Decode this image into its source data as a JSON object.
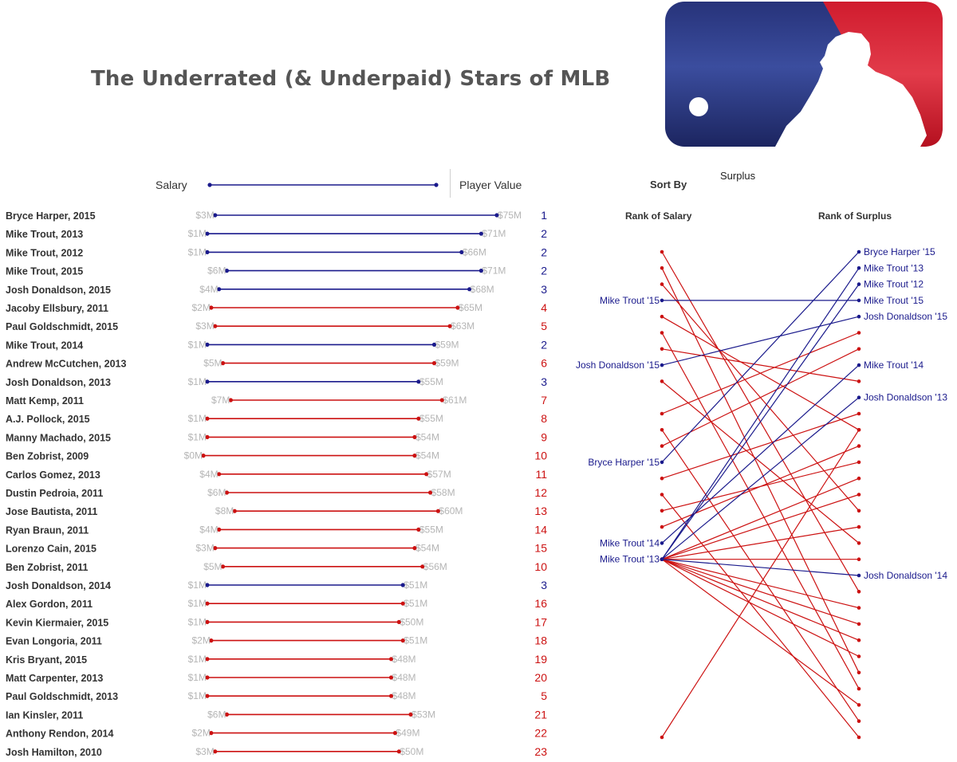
{
  "title": "The Underrated (& Underpaid) Stars of MLB",
  "header": {
    "legend_salary": "Salary",
    "legend_value": "Player Value",
    "surplus": "Surplus",
    "sort_by": "Sort By",
    "rank_salary": "Rank of Salary",
    "rank_surplus": "Rank of Surplus"
  },
  "colors": {
    "blue": "#1a1a8c",
    "red": "#cc1111",
    "label_gray": "#b5b5b5",
    "name_text": "#333333"
  },
  "icons": {
    "logo": "mlb-logo"
  },
  "chart_data": [
    {
      "type": "dumbbell",
      "xlim": [
        0,
        75
      ],
      "unit": "$M",
      "players": [
        {
          "name": "Bryce Harper, 2015",
          "salary": 3,
          "value": 75,
          "salary_label": "$3M",
          "value_label": "$75M",
          "rank": 1,
          "highlight": true
        },
        {
          "name": "Mike Trout, 2013",
          "salary": 1,
          "value": 71,
          "salary_label": "$1M",
          "value_label": "$71M",
          "rank": 2,
          "highlight": true
        },
        {
          "name": "Mike Trout, 2012",
          "salary": 1,
          "value": 66,
          "salary_label": "$1M",
          "value_label": "$66M",
          "rank": 2,
          "highlight": true
        },
        {
          "name": "Mike Trout, 2015",
          "salary": 6,
          "value": 71,
          "salary_label": "$6M",
          "value_label": "$71M",
          "rank": 2,
          "highlight": true
        },
        {
          "name": "Josh Donaldson, 2015",
          "salary": 4,
          "value": 68,
          "salary_label": "$4M",
          "value_label": "$68M",
          "rank": 3,
          "highlight": true
        },
        {
          "name": "Jacoby Ellsbury, 2011",
          "salary": 2,
          "value": 65,
          "salary_label": "$2M",
          "value_label": "$65M",
          "rank": 4,
          "highlight": false
        },
        {
          "name": "Paul Goldschmidt, 2015",
          "salary": 3,
          "value": 63,
          "salary_label": "$3M",
          "value_label": "$63M",
          "rank": 5,
          "highlight": false
        },
        {
          "name": "Mike Trout, 2014",
          "salary": 1,
          "value": 59,
          "salary_label": "$1M",
          "value_label": "$59M",
          "rank": 2,
          "highlight": true
        },
        {
          "name": "Andrew McCutchen, 2013",
          "salary": 5,
          "value": 59,
          "salary_label": "$5M",
          "value_label": "$59M",
          "rank": 6,
          "highlight": false
        },
        {
          "name": "Josh Donaldson, 2013",
          "salary": 1,
          "value": 55,
          "salary_label": "$1M",
          "value_label": "$55M",
          "rank": 3,
          "highlight": true
        },
        {
          "name": "Matt Kemp, 2011",
          "salary": 7,
          "value": 61,
          "salary_label": "$7M",
          "value_label": "$61M",
          "rank": 7,
          "highlight": false
        },
        {
          "name": "A.J. Pollock, 2015",
          "salary": 1,
          "value": 55,
          "salary_label": "$1M",
          "value_label": "$55M",
          "rank": 8,
          "highlight": false
        },
        {
          "name": "Manny Machado, 2015",
          "salary": 1,
          "value": 54,
          "salary_label": "$1M",
          "value_label": "$54M",
          "rank": 9,
          "highlight": false
        },
        {
          "name": "Ben Zobrist, 2009",
          "salary": 0,
          "value": 54,
          "salary_label": "$0M",
          "value_label": "$54M",
          "rank": 10,
          "highlight": false
        },
        {
          "name": "Carlos Gomez, 2013",
          "salary": 4,
          "value": 57,
          "salary_label": "$4M",
          "value_label": "$57M",
          "rank": 11,
          "highlight": false
        },
        {
          "name": "Dustin Pedroia, 2011",
          "salary": 6,
          "value": 58,
          "salary_label": "$6M",
          "value_label": "$58M",
          "rank": 12,
          "highlight": false
        },
        {
          "name": "Jose Bautista, 2011",
          "salary": 8,
          "value": 60,
          "salary_label": "$8M",
          "value_label": "$60M",
          "rank": 13,
          "highlight": false
        },
        {
          "name": "Ryan Braun, 2011",
          "salary": 4,
          "value": 55,
          "salary_label": "$4M",
          "value_label": "$55M",
          "rank": 14,
          "highlight": false
        },
        {
          "name": "Lorenzo Cain, 2015",
          "salary": 3,
          "value": 54,
          "salary_label": "$3M",
          "value_label": "$54M",
          "rank": 15,
          "highlight": false
        },
        {
          "name": "Ben Zobrist, 2011",
          "salary": 5,
          "value": 56,
          "salary_label": "$5M",
          "value_label": "$56M",
          "rank": 10,
          "highlight": false
        },
        {
          "name": "Josh Donaldson, 2014",
          "salary": 1,
          "value": 51,
          "salary_label": "$1M",
          "value_label": "$51M",
          "rank": 3,
          "highlight": true
        },
        {
          "name": "Alex Gordon, 2011",
          "salary": 1,
          "value": 51,
          "salary_label": "$1M",
          "value_label": "$51M",
          "rank": 16,
          "highlight": false
        },
        {
          "name": "Kevin Kiermaier, 2015",
          "salary": 1,
          "value": 50,
          "salary_label": "$1M",
          "value_label": "$50M",
          "rank": 17,
          "highlight": false
        },
        {
          "name": "Evan Longoria, 2011",
          "salary": 2,
          "value": 51,
          "salary_label": "$2M",
          "value_label": "$51M",
          "rank": 18,
          "highlight": false
        },
        {
          "name": "Kris Bryant, 2015",
          "salary": 1,
          "value": 48,
          "salary_label": "$1M",
          "value_label": "$48M",
          "rank": 19,
          "highlight": false
        },
        {
          "name": "Matt Carpenter, 2013",
          "salary": 1,
          "value": 48,
          "salary_label": "$1M",
          "value_label": "$48M",
          "rank": 20,
          "highlight": false
        },
        {
          "name": "Paul Goldschmidt, 2013",
          "salary": 1,
          "value": 48,
          "salary_label": "$1M",
          "value_label": "$48M",
          "rank": 5,
          "highlight": false
        },
        {
          "name": "Ian Kinsler, 2011",
          "salary": 6,
          "value": 53,
          "salary_label": "$6M",
          "value_label": "$53M",
          "rank": 21,
          "highlight": false
        },
        {
          "name": "Anthony Rendon, 2014",
          "salary": 2,
          "value": 49,
          "salary_label": "$2M",
          "value_label": "$49M",
          "rank": 22,
          "highlight": false
        },
        {
          "name": "Josh Hamilton, 2010",
          "salary": 3,
          "value": 50,
          "salary_label": "$3M",
          "value_label": "$50M",
          "rank": 23,
          "highlight": false
        }
      ]
    },
    {
      "type": "slope",
      "left_axis": "Rank of Salary",
      "right_axis": "Rank of Surplus",
      "rank_count": 31,
      "lines": [
        {
          "label": "Bryce Harper '15",
          "salary_rank": 14,
          "surplus_rank": 1,
          "highlight": true
        },
        {
          "label": "Mike Trout '13",
          "salary_rank": 20,
          "surplus_rank": 2,
          "highlight": true
        },
        {
          "label": "Mike Trout '12",
          "salary_rank": 20,
          "surplus_rank": 3,
          "highlight": true
        },
        {
          "label": "Mike Trout '15",
          "salary_rank": 4,
          "surplus_rank": 4,
          "highlight": true
        },
        {
          "label": "Josh Donaldson '15",
          "salary_rank": 8,
          "surplus_rank": 5,
          "highlight": true
        },
        {
          "label": "Mike Trout '14",
          "salary_rank": 19,
          "surplus_rank": 8,
          "highlight": true
        },
        {
          "label": "Josh Donaldson '13",
          "salary_rank": 20,
          "surplus_rank": 10,
          "highlight": true
        },
        {
          "label": "Josh Donaldson '14",
          "salary_rank": 20,
          "surplus_rank": 21,
          "highlight": true
        },
        {
          "salary_rank": 1,
          "surplus_rank": 22,
          "highlight": false
        },
        {
          "salary_rank": 2,
          "surplus_rank": 27,
          "highlight": false
        },
        {
          "salary_rank": 3,
          "surplus_rank": 17,
          "highlight": false
        },
        {
          "salary_rank": 5,
          "surplus_rank": 12,
          "highlight": false
        },
        {
          "salary_rank": 6,
          "surplus_rank": 28,
          "highlight": false
        },
        {
          "salary_rank": 7,
          "surplus_rank": 9,
          "highlight": false
        },
        {
          "salary_rank": 9,
          "surplus_rank": 19,
          "highlight": false
        },
        {
          "salary_rank": 11,
          "surplus_rank": 6,
          "highlight": false
        },
        {
          "salary_rank": 12,
          "surplus_rank": 30,
          "highlight": false
        },
        {
          "salary_rank": 13,
          "surplus_rank": 7,
          "highlight": false
        },
        {
          "salary_rank": 15,
          "surplus_rank": 11,
          "highlight": false
        },
        {
          "salary_rank": 16,
          "surplus_rank": 31,
          "highlight": false
        },
        {
          "salary_rank": 17,
          "surplus_rank": 14,
          "highlight": false
        },
        {
          "salary_rank": 18,
          "surplus_rank": 13,
          "highlight": false
        },
        {
          "salary_rank": 20,
          "surplus_rank": 15,
          "highlight": false
        },
        {
          "salary_rank": 20,
          "surplus_rank": 16,
          "highlight": false
        },
        {
          "salary_rank": 20,
          "surplus_rank": 18,
          "highlight": false
        },
        {
          "salary_rank": 20,
          "surplus_rank": 20,
          "highlight": false
        },
        {
          "salary_rank": 20,
          "surplus_rank": 23,
          "highlight": false
        },
        {
          "salary_rank": 20,
          "surplus_rank": 24,
          "highlight": false
        },
        {
          "salary_rank": 20,
          "surplus_rank": 25,
          "highlight": false
        },
        {
          "salary_rank": 20,
          "surplus_rank": 26,
          "highlight": false
        },
        {
          "salary_rank": 20,
          "surplus_rank": 29,
          "highlight": false
        },
        {
          "salary_rank": 31,
          "surplus_rank": 12,
          "highlight": false
        }
      ]
    }
  ]
}
